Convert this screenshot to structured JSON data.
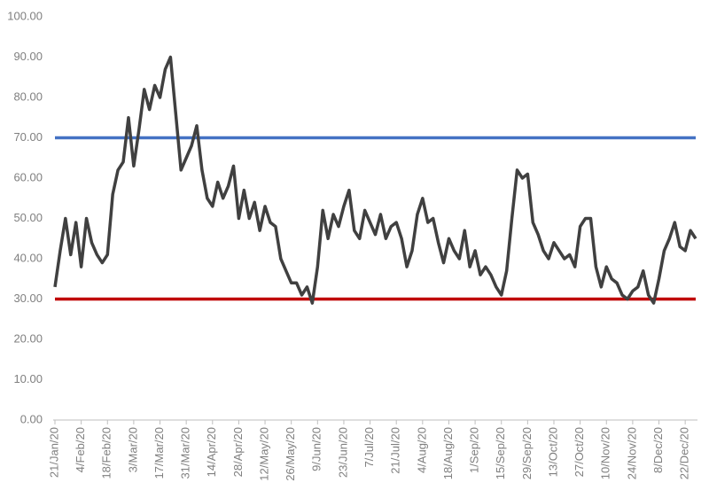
{
  "chart_data": {
    "type": "line",
    "categories": [
      "21/Jan/20",
      null,
      null,
      null,
      null,
      "4/Feb/20",
      null,
      null,
      null,
      null,
      "18/Feb/20",
      null,
      null,
      null,
      null,
      "3/Mar/20",
      null,
      null,
      null,
      null,
      "17/Mar/20",
      null,
      null,
      null,
      null,
      "31/Mar/20",
      null,
      null,
      null,
      null,
      "14/Apr/20",
      null,
      null,
      null,
      null,
      "28/Apr/20",
      null,
      null,
      null,
      null,
      "12/May/20",
      null,
      null,
      null,
      null,
      "26/May/20",
      null,
      null,
      null,
      null,
      "9/Jun/20",
      null,
      null,
      null,
      null,
      "23/Jun/20",
      null,
      null,
      null,
      null,
      "7/Jul/20",
      null,
      null,
      null,
      null,
      "21/Jul/20",
      null,
      null,
      null,
      null,
      "4/Aug/20",
      null,
      null,
      null,
      null,
      "18/Aug/20",
      null,
      null,
      null,
      null,
      "1/Sep/20",
      null,
      null,
      null,
      null,
      "15/Sep/20",
      null,
      null,
      null,
      null,
      "29/Sep/20",
      null,
      null,
      null,
      null,
      "13/Oct/20",
      null,
      null,
      null,
      null,
      "27/Oct/20",
      null,
      null,
      null,
      null,
      "10/Nov/20",
      null,
      null,
      null,
      null,
      "24/Nov/20",
      null,
      null,
      null,
      null,
      "8/Dec/20",
      null,
      null,
      null,
      null,
      "22/Dec/20",
      null,
      null
    ],
    "series": [
      {
        "color": "#404040",
        "values": [
          33,
          42,
          50,
          41,
          49,
          38,
          50,
          44,
          41,
          39,
          41,
          56,
          62,
          64,
          75,
          63,
          72,
          82,
          77,
          83,
          80,
          87,
          90,
          76,
          62,
          65,
          68,
          73,
          62,
          55,
          53,
          59,
          55,
          58,
          63,
          50,
          57,
          50,
          54,
          47,
          53,
          49,
          48,
          40,
          37,
          34,
          34,
          31,
          33,
          29,
          38,
          52,
          45,
          51,
          48,
          53,
          57,
          47,
          45,
          52,
          49,
          46,
          51,
          45,
          48,
          49,
          45,
          38,
          42,
          51,
          55,
          49,
          50,
          44,
          39,
          45,
          42,
          40,
          47,
          38,
          42,
          36,
          38,
          36,
          33,
          31,
          37,
          50,
          62,
          60,
          61,
          49,
          46,
          42,
          40,
          44,
          42,
          40,
          41,
          38,
          48,
          50,
          50,
          38,
          33,
          38,
          35,
          34,
          31,
          30,
          32,
          33,
          37,
          31,
          29,
          35,
          42,
          45,
          49,
          43,
          42,
          47,
          45
        ]
      }
    ],
    "reference_lines": [
      {
        "value": 70,
        "color": "#4472c4"
      },
      {
        "value": 30,
        "color": "#c00000"
      }
    ],
    "ylim": [
      0,
      100
    ],
    "yticks": [
      {
        "value": 0,
        "label": "0.00"
      },
      {
        "value": 10,
        "label": "10.00"
      },
      {
        "value": 20,
        "label": "20.00"
      },
      {
        "value": 30,
        "label": "30.00"
      },
      {
        "value": 40,
        "label": "40.00"
      },
      {
        "value": 50,
        "label": "50.00"
      },
      {
        "value": 60,
        "label": "60.00"
      },
      {
        "value": 70,
        "label": "70.00"
      },
      {
        "value": 80,
        "label": "80.00"
      },
      {
        "value": 90,
        "label": "90.00"
      },
      {
        "value": 100,
        "label": "100.00"
      }
    ],
    "grid": false
  }
}
